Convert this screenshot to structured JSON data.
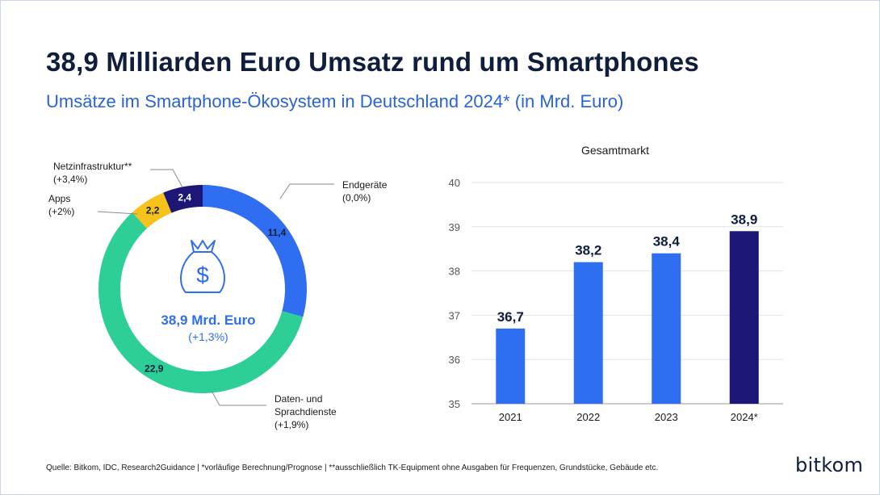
{
  "title": "38,9 Milliarden Euro Umsatz rund um Smartphones",
  "subtitle": "Umsätze im Smartphone-Ökosystem in Deutschland 2024* (in Mrd. Euro)",
  "donut": {
    "center_value": "38,9 Mrd. Euro",
    "center_change": "(+1,3%)"
  },
  "bar": {
    "title": "Gesamtmarkt"
  },
  "footer": {
    "source": "Quelle: Bitkom, IDC, Research2Guidance  | *vorläufige Berechnung/Prognose | **ausschließlich TK-Equipment ohne Ausgaben für Frequenzen, Grundstücke, Gebäude etc."
  },
  "logo": "bitkom",
  "colors": {
    "title": "#0f1e3c",
    "subtitle": "#2a63d6",
    "blue": "#2f6ef0",
    "green": "#2ecf96",
    "yellow": "#f7c21b",
    "navy": "#1c1676"
  },
  "chart_data": [
    {
      "type": "pie",
      "variant": "donut",
      "slices": [
        {
          "label": "Endgeräte",
          "change": "(0,0%)",
          "value": 11.4,
          "value_label": "11,4",
          "color": "#2f6ef0"
        },
        {
          "label": "Daten- und Sprachdienste",
          "label_lines": [
            "Daten- und",
            "Sprachdienste"
          ],
          "change": "(+1,9%)",
          "value": 22.9,
          "value_label": "22,9",
          "color": "#2ecf96"
        },
        {
          "label": "Apps",
          "change": "(+2%)",
          "value": 2.2,
          "value_label": "2,2",
          "color": "#f7c21b"
        },
        {
          "label": "Netzinfrastruktur**",
          "change": "(+3,4%)",
          "value": 2.4,
          "value_label": "2,4",
          "color": "#1c1676"
        }
      ]
    },
    {
      "type": "bar",
      "title": "Gesamtmarkt",
      "categories": [
        "2021",
        "2022",
        "2023",
        "2024*"
      ],
      "values": [
        36.7,
        38.2,
        38.4,
        38.9
      ],
      "value_labels": [
        "36,7",
        "38,2",
        "38,4",
        "38,9"
      ],
      "colors": [
        "#2f6ef0",
        "#2f6ef0",
        "#2f6ef0",
        "#1c1676"
      ],
      "ylim": [
        35,
        40
      ],
      "yticks": [
        35,
        36,
        37,
        38,
        39,
        40
      ],
      "grid": true
    }
  ]
}
